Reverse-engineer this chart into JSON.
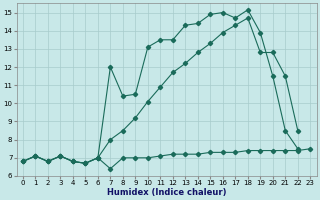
{
  "xlabel": "Humidex (Indice chaleur)",
  "xlim": [
    -0.5,
    23.5
  ],
  "ylim": [
    6.0,
    15.5
  ],
  "xticks": [
    0,
    1,
    2,
    3,
    4,
    5,
    6,
    7,
    8,
    9,
    10,
    11,
    12,
    13,
    14,
    15,
    16,
    17,
    18,
    19,
    20,
    21,
    22,
    23
  ],
  "yticks": [
    6,
    7,
    8,
    9,
    10,
    11,
    12,
    13,
    14,
    15
  ],
  "bg_color": "#c8e8e8",
  "grid_color": "#a8cccc",
  "line_color": "#1a6b5a",
  "line1_x": [
    0,
    1,
    2,
    3,
    4,
    5,
    6,
    7,
    8,
    9,
    10,
    11,
    12,
    13,
    14,
    15,
    16,
    17,
    18,
    19,
    20,
    21,
    22,
    23
  ],
  "line1_y": [
    6.8,
    7.1,
    6.8,
    7.1,
    6.8,
    6.7,
    7.0,
    6.4,
    7.0,
    7.0,
    7.0,
    7.1,
    7.2,
    7.2,
    7.2,
    7.3,
    7.3,
    7.3,
    7.4,
    7.4,
    7.4,
    7.4,
    7.4,
    7.5
  ],
  "line2_x": [
    0,
    1,
    2,
    3,
    4,
    5,
    6,
    7,
    8,
    9,
    10,
    11,
    12,
    13,
    14,
    15,
    16,
    17,
    18,
    19,
    20,
    21,
    22
  ],
  "line2_y": [
    6.8,
    7.1,
    6.8,
    7.1,
    6.8,
    6.7,
    7.0,
    12.0,
    10.4,
    10.5,
    13.1,
    13.5,
    13.5,
    14.3,
    14.4,
    14.9,
    15.0,
    14.7,
    15.15,
    13.9,
    11.5,
    8.5,
    7.5
  ],
  "line3_x": [
    0,
    1,
    2,
    3,
    4,
    5,
    6,
    7,
    8,
    9,
    10,
    11,
    12,
    13,
    14,
    15,
    16,
    17,
    18,
    19,
    20,
    21,
    22
  ],
  "line3_y": [
    6.8,
    7.1,
    6.8,
    7.1,
    6.8,
    6.7,
    7.0,
    8.0,
    8.5,
    9.2,
    10.1,
    10.9,
    11.7,
    12.2,
    12.8,
    13.3,
    13.9,
    14.3,
    14.7,
    12.8,
    12.8,
    11.5,
    8.5
  ]
}
